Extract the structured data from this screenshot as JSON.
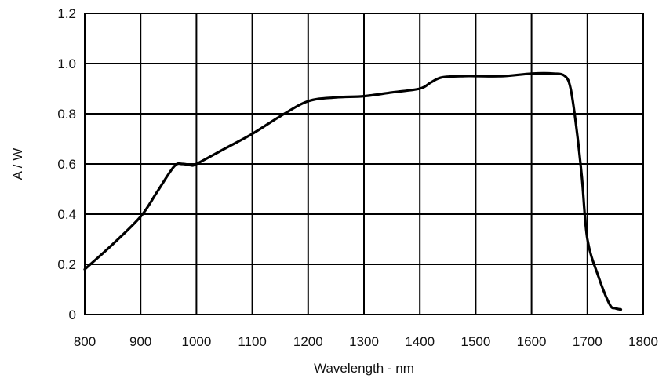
{
  "chart_data": {
    "type": "line",
    "title": "",
    "xlabel": "Wavelength - nm",
    "ylabel": "A / W",
    "xlim": [
      800,
      1800
    ],
    "ylim": [
      0,
      1.2
    ],
    "xticks": [
      "800",
      "900",
      "1000",
      "1100",
      "1200",
      "1300",
      "1400",
      "1500",
      "1600",
      "1700",
      "1800"
    ],
    "yticks": [
      "0",
      "0.2",
      "0.4",
      "0.6",
      "0.8",
      "1.0",
      "1.2"
    ],
    "grid": true,
    "legend": "none",
    "colors": {
      "line": "#000000",
      "grid": "#000000",
      "background": "#ffffff"
    },
    "series": [
      {
        "x": [
          800,
          850,
          900,
          930,
          960,
          975,
          990,
          1000,
          1050,
          1100,
          1150,
          1200,
          1250,
          1300,
          1350,
          1400,
          1420,
          1440,
          1480,
          1500,
          1550,
          1600,
          1640,
          1660,
          1670,
          1680,
          1690,
          1700,
          1720,
          1740,
          1750,
          1760
        ],
        "y": [
          0.18,
          0.28,
          0.39,
          0.49,
          0.59,
          0.6,
          0.595,
          0.6,
          0.66,
          0.72,
          0.79,
          0.85,
          0.865,
          0.87,
          0.885,
          0.9,
          0.925,
          0.945,
          0.95,
          0.95,
          0.95,
          0.96,
          0.96,
          0.95,
          0.9,
          0.75,
          0.55,
          0.3,
          0.15,
          0.04,
          0.025,
          0.02
        ]
      }
    ]
  }
}
